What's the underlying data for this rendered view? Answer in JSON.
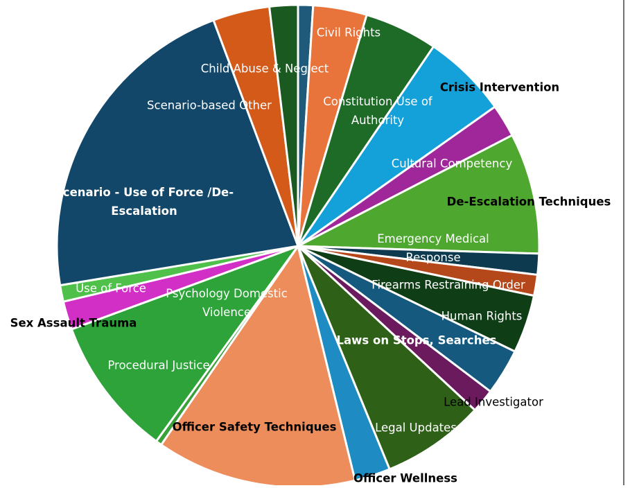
{
  "chart_data": {
    "type": "pie",
    "categories": [
      null,
      "Civil Rights",
      "Constitution Use of Authority",
      "Crisis Intervention",
      "Cultural Competency",
      "De-Escalation Techniques",
      "Emergency Medical Response",
      "Firearms Restraining Order",
      "Human Rights",
      "Laws on Stops, Searches",
      "Lead Investigator",
      "Legal Updates",
      "Officer Wellness",
      "Officer Safety Techniques",
      "Psychology Domestic Violence",
      "Procedural Justice",
      "Sex Assault Trauma",
      "Use of Force",
      "Scenario - Use of Force /De-Escalation",
      "Scenario-based Other",
      "Child Abuse & Neglect"
    ],
    "values": [
      1.0,
      3.6,
      4.9,
      5.7,
      2.2,
      8.1,
      1.4,
      1.4,
      3.9,
      3.1,
      1.6,
      6.9,
      2.4,
      13.4,
      0.4,
      9.4,
      1.9,
      1.1,
      21.9,
      3.8,
      1.9
    ],
    "colors": [
      "#1f5a7a",
      "#e8743b",
      "#1e6b28",
      "#14a0d8",
      "#a0279a",
      "#4ea72e",
      "#0d3a4f",
      "#b5481a",
      "#0f3d16",
      "#155a7e",
      "#6b1a5e",
      "#2e6018",
      "#1e8bc3",
      "#ec8d5b",
      "#3aa03a",
      "#2ea33a",
      "#d22fc6",
      "#4fc04a",
      "#12476a",
      "#d45a19",
      "#1a5a20"
    ]
  }
}
